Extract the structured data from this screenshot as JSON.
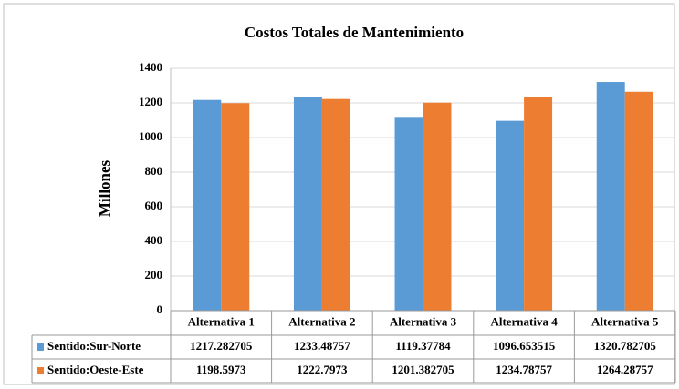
{
  "chart_data": {
    "type": "bar",
    "title": "Costos Totales de Mantenimiento",
    "y_label": "Millones",
    "categories": [
      "Alternativa 1",
      "Alternativa 2",
      "Alternativa 3",
      "Alternativa 4",
      "Alternativa 5"
    ],
    "series": [
      {
        "name": "Sentido:Sur-Norte",
        "color": "#5b9bd5",
        "values": [
          1217.282705,
          1233.48757,
          1119.37784,
          1096.653515,
          1320.782705
        ]
      },
      {
        "name": "Sentido:Oeste-Este",
        "color": "#ed7d31",
        "values": [
          1198.5973,
          1222.7973,
          1201.382705,
          1234.78757,
          1264.28757
        ]
      }
    ],
    "ylim": [
      0,
      1400
    ],
    "yticks": [
      0,
      200,
      400,
      600,
      800,
      1000,
      1200,
      1400
    ],
    "grid": true
  }
}
